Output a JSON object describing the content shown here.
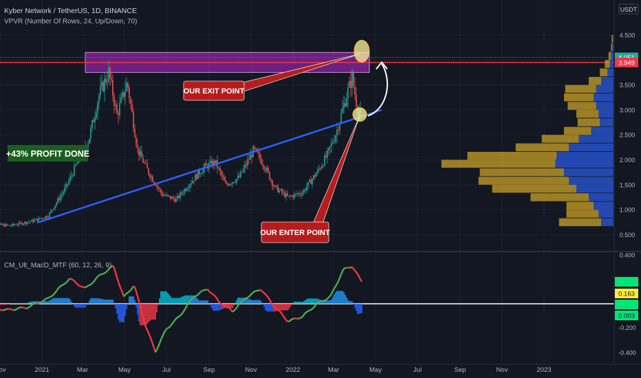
{
  "header": {
    "symbol_line": "Kyber Network / TetherUS, 1D, BINANCE",
    "indicator_line": "VPVR (Number Of Rows, 24, Up/Down, 70)"
  },
  "currency_label": "USDT",
  "annotations": {
    "profit_label": "+43% PROFIT DONE",
    "exit_label": "OUR EXIT POINT",
    "enter_label": "OUR ENTER POINT"
  },
  "chart_data": [
    {
      "type": "candlestick",
      "title": "Kyber Network / TetherUS, 1D, BINANCE",
      "x_ticks": [
        "Nov",
        "2021",
        "Mar",
        "May",
        "Jul",
        "Sep",
        "Nov",
        "2022",
        "Mar",
        "May",
        "Jul",
        "Sep",
        "Nov",
        "2023"
      ],
      "y_ticks": [
        "4.500",
        "4.000",
        "3.500",
        "3.000",
        "2.500",
        "2.000",
        "1.500",
        "1.000",
        "0.500"
      ],
      "ylim": [
        0.35,
        4.65
      ],
      "price_labels": [
        {
          "text": "4.051",
          "value": 4.051,
          "color": "#26a69a"
        },
        {
          "text": "3.949",
          "value": 3.949,
          "color": "#f23645"
        }
      ],
      "close_series": [
        {
          "date": "2020-10-10",
          "close": 0.72
        },
        {
          "date": "2020-11-15",
          "close": 0.68
        },
        {
          "date": "2020-12-20",
          "close": 0.78
        },
        {
          "date": "2021-01-10",
          "close": 0.88
        },
        {
          "date": "2021-02-05",
          "close": 1.45
        },
        {
          "date": "2021-02-20",
          "close": 1.9
        },
        {
          "date": "2021-03-10",
          "close": 2.4
        },
        {
          "date": "2021-03-25",
          "close": 3.3
        },
        {
          "date": "2021-04-08",
          "close": 3.75
        },
        {
          "date": "2021-04-20",
          "close": 2.9
        },
        {
          "date": "2021-05-05",
          "close": 3.55
        },
        {
          "date": "2021-05-20",
          "close": 2.2
        },
        {
          "date": "2021-06-05",
          "close": 1.75
        },
        {
          "date": "2021-06-25",
          "close": 1.3
        },
        {
          "date": "2021-07-15",
          "close": 1.2
        },
        {
          "date": "2021-08-05",
          "close": 1.55
        },
        {
          "date": "2021-08-25",
          "close": 1.85
        },
        {
          "date": "2021-09-10",
          "close": 1.95
        },
        {
          "date": "2021-09-25",
          "close": 1.5
        },
        {
          "date": "2021-10-15",
          "close": 1.65
        },
        {
          "date": "2021-11-05",
          "close": 2.2
        },
        {
          "date": "2021-11-20",
          "close": 1.9
        },
        {
          "date": "2021-12-05",
          "close": 1.45
        },
        {
          "date": "2021-12-25",
          "close": 1.25
        },
        {
          "date": "2022-01-15",
          "close": 1.35
        },
        {
          "date": "2022-02-05",
          "close": 1.75
        },
        {
          "date": "2022-02-20",
          "close": 2.1
        },
        {
          "date": "2022-03-05",
          "close": 2.55
        },
        {
          "date": "2022-03-18",
          "close": 3.2
        },
        {
          "date": "2022-03-28",
          "close": 3.65
        },
        {
          "date": "2022-04-05",
          "close": 3.0
        },
        {
          "date": "2022-04-10",
          "close": 2.9
        }
      ],
      "horizontal_line": {
        "value": 3.949,
        "color": "#f23645"
      },
      "exit_zone": {
        "from_date": "2021-03-05",
        "to_date": "2022-04-22",
        "low": 3.75,
        "high": 4.15,
        "color": "#9c27b0"
      },
      "trendline": {
        "start": {
          "date": "2020-12-25",
          "value": 0.74
        },
        "end": {
          "date": "2022-05-10",
          "value": 3.0
        },
        "color": "#2962ff"
      },
      "enter_point": {
        "date": "2022-04-08",
        "value": 2.88
      },
      "exit_point": {
        "date": "2022-04-08",
        "value": 4.12
      }
    },
    {
      "type": "bar",
      "title": "VPVR (Number Of Rows, 24, Up/Down, 70)",
      "rows": [
        {
          "price": 0.75,
          "up": 0.34,
          "down": 0.1
        },
        {
          "price": 0.92,
          "up": 0.26,
          "down": 0.12
        },
        {
          "price": 1.08,
          "up": 0.22,
          "down": 0.16
        },
        {
          "price": 1.25,
          "up": 0.47,
          "down": 0.2
        },
        {
          "price": 1.42,
          "up": 0.68,
          "down": 0.3
        },
        {
          "price": 1.58,
          "up": 0.73,
          "down": 0.36
        },
        {
          "price": 1.75,
          "up": 0.68,
          "down": 0.4
        },
        {
          "price": 1.92,
          "up": 0.92,
          "down": 0.47
        },
        {
          "price": 2.08,
          "up": 0.72,
          "down": 0.46
        },
        {
          "price": 2.25,
          "up": 0.43,
          "down": 0.36
        },
        {
          "price": 2.42,
          "up": 0.3,
          "down": 0.28
        },
        {
          "price": 2.58,
          "up": 0.22,
          "down": 0.18
        },
        {
          "price": 2.75,
          "up": 0.18,
          "down": 0.11
        },
        {
          "price": 2.92,
          "up": 0.18,
          "down": 0.12
        },
        {
          "price": 3.08,
          "up": 0.23,
          "down": 0.14
        },
        {
          "price": 3.25,
          "up": 0.24,
          "down": 0.16
        },
        {
          "price": 3.42,
          "up": 0.25,
          "down": 0.14
        },
        {
          "price": 3.58,
          "up": 0.1,
          "down": 0.1
        },
        {
          "price": 3.75,
          "up": 0.06,
          "down": 0.05
        },
        {
          "price": 3.92,
          "up": 0.04,
          "down": 0.03
        },
        {
          "price": 4.08,
          "up": 0.02,
          "down": 0.02
        },
        {
          "price": 4.25,
          "up": 0.01,
          "down": 0.01
        },
        {
          "price": 4.42,
          "up": 0.01,
          "down": 0.005
        }
      ]
    },
    {
      "type": "line",
      "title": "CM_Ult_MacD_MTF (60, 12, 26, 9)",
      "y_ticks": [
        "0.400",
        "0.200",
        "-0.200",
        "-0.400"
      ],
      "ylim": [
        -0.45,
        0.45
      ],
      "zero_line": 0,
      "value_labels": [
        {
          "text": "0.163",
          "value": 0.163,
          "color": "#ffeb3b"
        },
        {
          "text": "0.003",
          "value": 0.003,
          "color": "#00e676"
        }
      ],
      "macd_series": [
        {
          "date": "2020-10-10",
          "value": -0.02
        },
        {
          "date": "2020-11-10",
          "value": -0.05
        },
        {
          "date": "2020-12-10",
          "value": -0.03
        },
        {
          "date": "2021-01-10",
          "value": 0.04
        },
        {
          "date": "2021-02-10",
          "value": 0.2
        },
        {
          "date": "2021-03-05",
          "value": 0.12
        },
        {
          "date": "2021-03-25",
          "value": 0.22
        },
        {
          "date": "2021-04-15",
          "value": 0.3
        },
        {
          "date": "2021-04-30",
          "value": 0.05
        },
        {
          "date": "2021-05-15",
          "value": 0.15
        },
        {
          "date": "2021-06-01",
          "value": -0.18
        },
        {
          "date": "2021-06-15",
          "value": -0.38
        },
        {
          "date": "2021-07-01",
          "value": -0.2
        },
        {
          "date": "2021-07-20",
          "value": -0.1
        },
        {
          "date": "2021-08-10",
          "value": 0.06
        },
        {
          "date": "2021-08-30",
          "value": 0.12
        },
        {
          "date": "2021-09-15",
          "value": 0.02
        },
        {
          "date": "2021-10-05",
          "value": -0.06
        },
        {
          "date": "2021-10-25",
          "value": 0.05
        },
        {
          "date": "2021-11-15",
          "value": 0.12
        },
        {
          "date": "2021-12-05",
          "value": -0.02
        },
        {
          "date": "2021-12-25",
          "value": -0.14
        },
        {
          "date": "2022-01-15",
          "value": -0.1
        },
        {
          "date": "2022-02-05",
          "value": 0.0
        },
        {
          "date": "2022-02-25",
          "value": 0.06
        },
        {
          "date": "2022-03-15",
          "value": 0.27
        },
        {
          "date": "2022-03-28",
          "value": 0.3
        },
        {
          "date": "2022-04-08",
          "value": 0.2
        },
        {
          "date": "2022-04-12",
          "value": 0.17
        }
      ]
    }
  ],
  "colors": {
    "background": "#131722",
    "grid": "#1e222d",
    "up": "#26a69a",
    "down": "#ef5350",
    "vp_up": "#2751c8",
    "vp_down": "#c9a227",
    "macd_up": "#4caf50",
    "macd_down": "#f23645"
  }
}
